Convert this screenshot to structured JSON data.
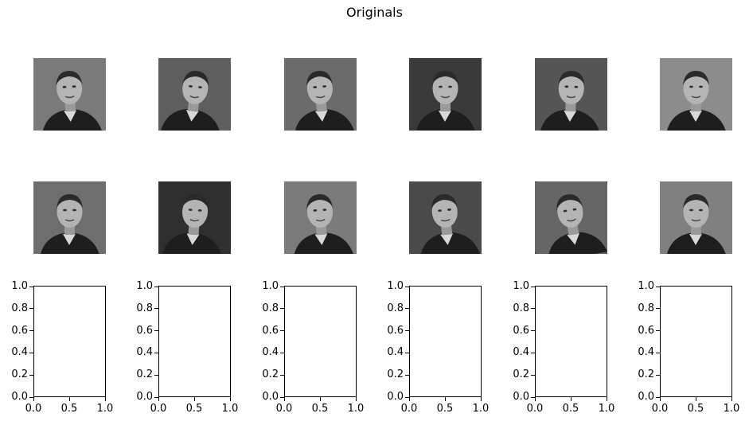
{
  "figure": {
    "title": "Originals"
  },
  "image_grid": {
    "rows": 2,
    "cols": 6,
    "cells": [
      {
        "subject": "man-portrait-1",
        "rotation_deg": -3,
        "tone": "#7a7a7a"
      },
      {
        "subject": "man-portrait-2",
        "rotation_deg": 6,
        "tone": "#5e5e5e"
      },
      {
        "subject": "woman-smiling",
        "rotation_deg": -5,
        "tone": "#6b6b6b"
      },
      {
        "subject": "man-portrait-3",
        "rotation_deg": 0,
        "tone": "#3a3a3a"
      },
      {
        "subject": "man-portrait-4",
        "rotation_deg": 2,
        "tone": "#555555"
      },
      {
        "subject": "man-portrait-5",
        "rotation_deg": 0,
        "tone": "#8c8c8c"
      },
      {
        "subject": "man-portrait-6",
        "rotation_deg": 0,
        "tone": "#6e6e6e"
      },
      {
        "subject": "man-portrait-7",
        "rotation_deg": 4,
        "tone": "#2f2f2f"
      },
      {
        "subject": "man-portrait-8",
        "rotation_deg": -4,
        "tone": "#7b7b7b"
      },
      {
        "subject": "man-portrait-9",
        "rotation_deg": -6,
        "tone": "#4a4a4a"
      },
      {
        "subject": "man-portrait-10",
        "rotation_deg": -9,
        "tone": "#666666"
      },
      {
        "subject": "man-portrait-11",
        "rotation_deg": 0,
        "tone": "#808080"
      }
    ]
  },
  "chart_data": {
    "type": "scatter",
    "panels": 6,
    "xlim": [
      0.0,
      1.0
    ],
    "ylim": [
      0.0,
      1.0
    ],
    "xticks": [
      "0.0",
      "0.5",
      "1.0"
    ],
    "yticks": [
      "0.0",
      "0.2",
      "0.4",
      "0.6",
      "0.8",
      "1.0"
    ],
    "series": []
  }
}
